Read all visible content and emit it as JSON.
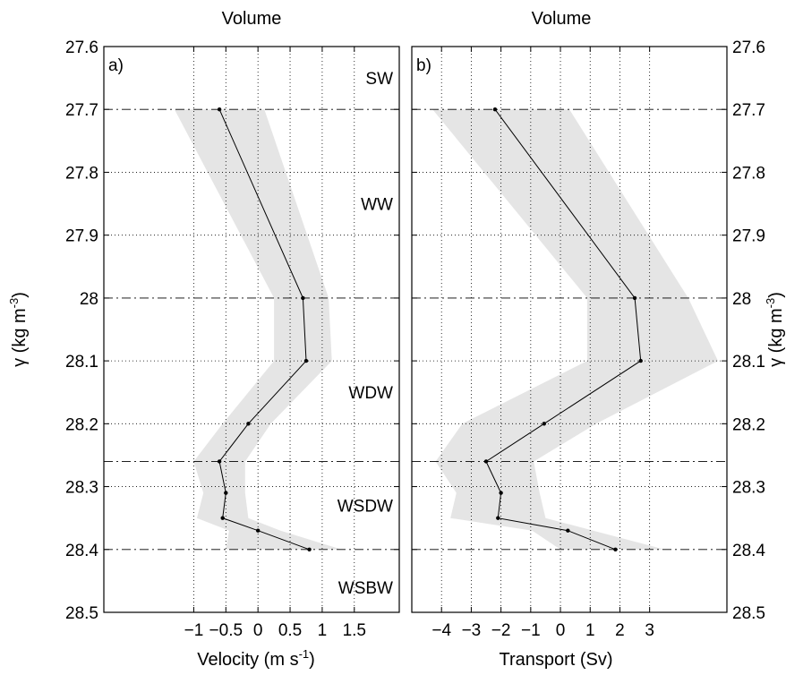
{
  "y_axis": {
    "label": "γ (kg m⁻³)",
    "label_main": "γ (kg m",
    "label_sup": "-3",
    "label_close": ")",
    "ylim": [
      27.6,
      28.5
    ],
    "ticks": [
      27.6,
      27.7,
      27.8,
      27.9,
      28.0,
      28.1,
      28.2,
      28.3,
      28.4,
      28.5
    ],
    "tick_labels": [
      "27.6",
      "27.7",
      "27.8",
      "27.9",
      "28",
      "28.1",
      "28.2",
      "28.3",
      "28.4",
      "28.5"
    ],
    "reversed": true
  },
  "boundaries": [
    27.7,
    28.0,
    28.26,
    28.4
  ],
  "water_masses": [
    {
      "label": "SW",
      "y": 27.65
    },
    {
      "label": "WW",
      "y": 27.85
    },
    {
      "label": "WDW",
      "y": 28.15
    },
    {
      "label": "WSDW",
      "y": 28.33
    },
    {
      "label": "WSBW",
      "y": 28.46
    }
  ],
  "chart_data": [
    {
      "type": "line",
      "panel": "a)",
      "title": "Volume",
      "xlabel": "Velocity (m s⁻¹)",
      "xlabel_main": "Velocity (m s",
      "xlabel_sup": "-1",
      "xlabel_close": ")",
      "xlim": [
        -2.4,
        2.2
      ],
      "xticks": [
        -1,
        -0.5,
        0,
        0.5,
        1,
        1.5
      ],
      "xtick_labels": [
        "−1",
        "−0.5",
        "0",
        "0.5",
        "1",
        "1.5"
      ],
      "grid": true,
      "series": [
        {
          "y": [
            27.7,
            28.0,
            28.1,
            28.2,
            28.26,
            28.31,
            28.35,
            28.37,
            28.4
          ],
          "x": [
            -0.6,
            0.7,
            0.75,
            -0.15,
            -0.6,
            -0.5,
            -0.55,
            0.0,
            0.8
          ]
        }
      ],
      "band": {
        "y": [
          27.7,
          28.0,
          28.1,
          28.2,
          28.26,
          28.31,
          28.35,
          28.37,
          28.4
        ],
        "lower": [
          -1.3,
          0.25,
          0.25,
          -0.55,
          -1.0,
          -0.85,
          -0.95,
          -0.45,
          -0.5
        ],
        "upper": [
          0.1,
          1.1,
          1.15,
          0.2,
          -0.2,
          -0.2,
          -0.15,
          0.35,
          1.3
        ]
      }
    },
    {
      "type": "line",
      "panel": "b)",
      "title": "Volume",
      "xlabel": "Transport (Sv)",
      "xlim": [
        -5,
        5.6
      ],
      "xticks": [
        -4,
        -3,
        -2,
        -1,
        0,
        1,
        2,
        3
      ],
      "xtick_labels": [
        "−4",
        "−3",
        "−2",
        "−1",
        "0",
        "1",
        "2",
        "3"
      ],
      "grid": true,
      "series": [
        {
          "y": [
            27.7,
            28.0,
            28.1,
            28.2,
            28.26,
            28.31,
            28.35,
            28.37,
            28.4
          ],
          "x": [
            -2.2,
            2.5,
            2.7,
            -0.55,
            -2.5,
            -2.0,
            -2.1,
            0.25,
            1.85
          ]
        }
      ],
      "band": {
        "y": [
          27.7,
          28.0,
          28.1,
          28.2,
          28.26,
          28.31,
          28.35,
          28.37,
          28.4
        ],
        "lower": [
          -4.3,
          0.9,
          0.9,
          -3.3,
          -4.2,
          -3.5,
          -3.7,
          -0.95,
          0.0
        ],
        "upper": [
          0.3,
          4.3,
          5.3,
          1.2,
          -0.9,
          -0.7,
          -0.5,
          1.1,
          3.5
        ]
      }
    }
  ]
}
